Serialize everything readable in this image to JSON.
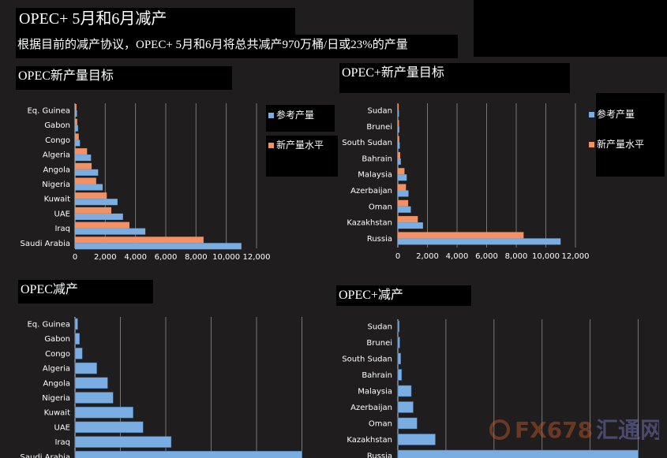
{
  "header": {
    "title": "OPEC+ 5月和6月减产",
    "subtitle": "根据目前的减产协议，OPEC+ 5月和6月将总共减产970万桶/日或23%的产量"
  },
  "colors": {
    "reference": "#7aaee2",
    "new_level": "#f39165",
    "grid": "#777777",
    "background": "#1f1d1e"
  },
  "legend": {
    "reference": "参考产量",
    "new_level": "新产量水平"
  },
  "watermark": {
    "brand": "FX678",
    "brand_cn": "汇通网"
  },
  "chart_data": [
    {
      "id": "opec-target",
      "type": "bar",
      "orientation": "horizontal",
      "title": "OPEC新产量目标",
      "categories": [
        "Eq. Guinea",
        "Gabon",
        "Congo",
        "Algeria",
        "Angola",
        "Nigeria",
        "Kuwait",
        "UAE",
        "Iraq",
        "Saudi Arabia"
      ],
      "series": [
        {
          "name": "新产量水平",
          "key": "new_level",
          "values": [
            100,
            150,
            250,
            800,
            1100,
            1400,
            2100,
            2400,
            3600,
            8500
          ]
        },
        {
          "name": "参考产量",
          "key": "reference",
          "values": [
            130,
            200,
            330,
            1060,
            1530,
            1830,
            2810,
            3170,
            4650,
            11000
          ]
        }
      ],
      "xlim": [
        0,
        12000
      ],
      "xticks": [
        0,
        2000,
        4000,
        6000,
        8000,
        10000,
        12000
      ],
      "tick_labels": [
        "0",
        "2,000",
        "4,000",
        "6,000",
        "8,000",
        "10,000",
        "12,000"
      ],
      "legend": "right"
    },
    {
      "id": "non-opec-target",
      "type": "bar",
      "orientation": "horizontal",
      "title": "OPEC+新产量目标",
      "categories": [
        "Sudan",
        "Brunei",
        "South Sudan",
        "Bahrain",
        "Malaysia",
        "Azerbaijan",
        "Oman",
        "Kazakhstan",
        "Russia"
      ],
      "series": [
        {
          "name": "新产量水平",
          "key": "new_level",
          "values": [
            60,
            80,
            100,
            160,
            450,
            550,
            700,
            1350,
            8500
          ]
        },
        {
          "name": "参考产量",
          "key": "reference",
          "values": [
            75,
            100,
            130,
            200,
            600,
            720,
            880,
            1700,
            11000
          ]
        }
      ],
      "xlim": [
        0,
        12000
      ],
      "xticks": [
        0,
        2000,
        4000,
        6000,
        8000,
        10000,
        12000
      ],
      "tick_labels": [
        "0",
        "2,000",
        "4,000",
        "6,000",
        "8,000",
        "10,000",
        "12,000"
      ],
      "legend": "right"
    },
    {
      "id": "opec-cut",
      "type": "bar",
      "orientation": "horizontal",
      "title": "OPEC减产",
      "categories": [
        "Eq. Guinea",
        "Gabon",
        "Congo",
        "Algeria",
        "Angola",
        "Nigeria",
        "Kuwait",
        "UAE",
        "Iraq",
        "Saudi Arabia"
      ],
      "series": [
        {
          "name": "减产",
          "key": "reference",
          "values": [
            30,
            50,
            80,
            240,
            360,
            420,
            640,
            750,
            1060,
            2500
          ]
        }
      ],
      "xlim": [
        0,
        3000
      ],
      "gridlines": [
        500,
        1000,
        1500,
        2000,
        2500
      ]
    },
    {
      "id": "non-opec-cut",
      "type": "bar",
      "orientation": "horizontal",
      "title": "OPEC+减产",
      "categories": [
        "Sudan",
        "Brunei",
        "South Sudan",
        "Bahrain",
        "Malaysia",
        "Azerbaijan",
        "Oman",
        "Kazakhstan",
        "Russia"
      ],
      "series": [
        {
          "name": "减产",
          "key": "reference",
          "values": [
            15,
            20,
            30,
            40,
            140,
            160,
            200,
            390,
            2500
          ]
        }
      ],
      "xlim": [
        0,
        2800
      ],
      "gridlines": [
        500,
        1000,
        1500,
        2000,
        2500
      ]
    }
  ]
}
